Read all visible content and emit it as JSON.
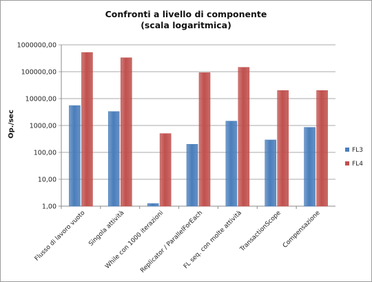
{
  "chart_data": {
    "type": "bar",
    "title": "Confronti a livello di componente",
    "subtitle": "(scala logaritmica)",
    "xlabel": "",
    "ylabel": "Op./sec",
    "y_scale": "log",
    "ylim": [
      1,
      1000000
    ],
    "yticks": [
      "1,00",
      "10,00",
      "100,00",
      "1000,00",
      "10000,00",
      "100000,00",
      "1000000,00"
    ],
    "categories": [
      "Flusso di lavoro vuoto",
      "Singola attività",
      "While con 1000 iterazioni",
      "Replicator / ParallelForEach",
      "FL seq. con molte attività",
      "TransactionScope",
      "Compensazione"
    ],
    "series": [
      {
        "name": "FL3",
        "color": "#4a7ebb",
        "values": [
          5500,
          3300,
          1.25,
          200,
          1450,
          290,
          850
        ]
      },
      {
        "name": "FL4",
        "color": "#c0504d",
        "values": [
          520000,
          330000,
          500,
          92000,
          145000,
          20000,
          20000
        ]
      }
    ],
    "grid": true,
    "legend_position": "right"
  }
}
